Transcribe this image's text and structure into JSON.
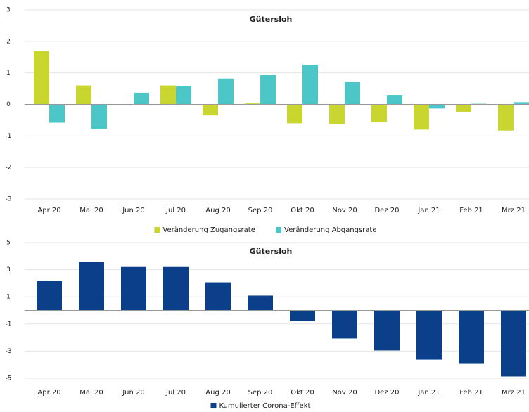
{
  "chart_data": [
    {
      "type": "bar",
      "title": "Gütersloh",
      "categories": [
        "Apr 20",
        "Mai 20",
        "Jun 20",
        "Jul 20",
        "Aug 20",
        "Sep 20",
        "Okt 20",
        "Nov 20",
        "Dez 20",
        "Jan 21",
        "Feb 21",
        "Mrz 21"
      ],
      "series": [
        {
          "name": "Veränderung Zugangsrate",
          "color": "#c9d62f",
          "values": [
            1.7,
            0.6,
            0,
            0.6,
            -0.35,
            0.03,
            -0.6,
            -0.62,
            -0.57,
            -0.8,
            -0.25,
            -0.83
          ]
        },
        {
          "name": "Veränderung Abgangsrate",
          "color": "#4dc6c8",
          "values": [
            -0.58,
            -0.78,
            0.37,
            0.58,
            0.82,
            0.93,
            1.26,
            0.72,
            0.3,
            -0.13,
            0.02,
            0.07
          ]
        }
      ],
      "ylim": [
        -3,
        3
      ],
      "yticks": [
        -3,
        -2,
        -1,
        0,
        1,
        2,
        3
      ],
      "grid": true
    },
    {
      "type": "bar",
      "title": "Gütersloh",
      "categories": [
        "Apr 20",
        "Mai 20",
        "Jun 20",
        "Jul 20",
        "Aug 20",
        "Sep 20",
        "Okt 20",
        "Nov 20",
        "Dez 20",
        "Jan 21",
        "Feb 21",
        "Mrz 21"
      ],
      "series": [
        {
          "name": "Kumulierter Corona-Effekt",
          "color": "#0c3f8a",
          "values": [
            2.18,
            3.57,
            3.2,
            3.2,
            2.07,
            1.09,
            -0.78,
            -2.07,
            -2.95,
            -3.63,
            -3.94,
            -4.87
          ]
        }
      ],
      "ylim": [
        -5,
        5
      ],
      "yticks": [
        -5,
        -3,
        -1,
        1,
        3,
        5
      ],
      "grid": true
    }
  ]
}
